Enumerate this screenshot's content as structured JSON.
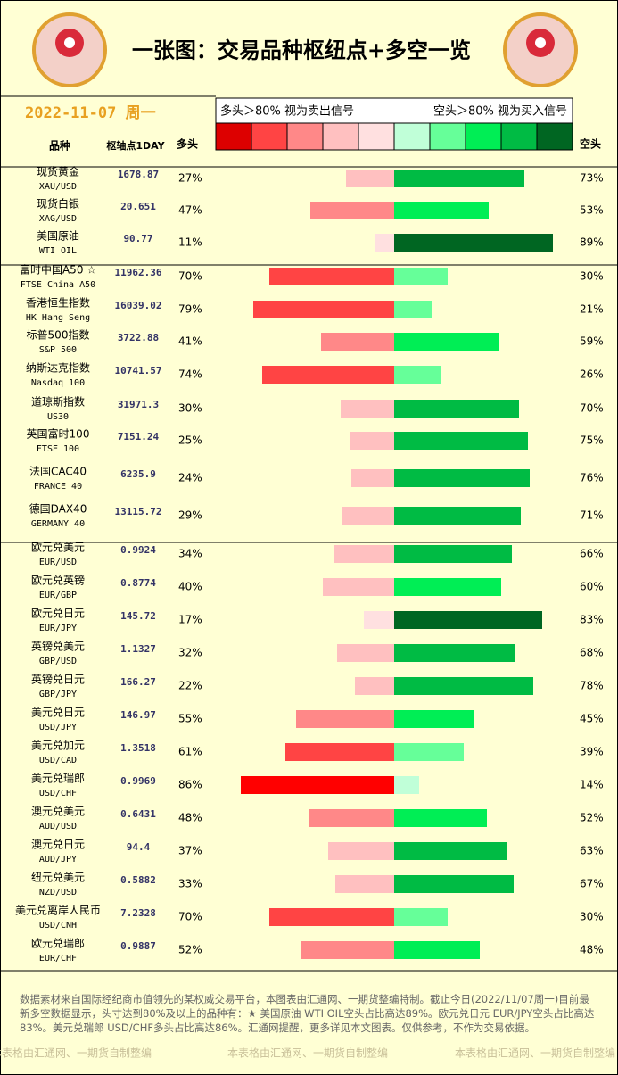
{
  "chart_data": {
    "type": "bar",
    "title": "一张图：交易品种枢纽点+多空一览",
    "date": "2022-11-07 周一",
    "legend_labels": [
      "多头＞80% 视为卖出信号",
      "空头＞80% 视为买入信号"
    ],
    "legend_colors": [
      "#dd0000",
      "#ff4444",
      "#ff8888",
      "#ffc0c0",
      "#ffe0e0",
      "#c0ffd8",
      "#66ff99",
      "#00ee55",
      "#00bb44",
      "#006622"
    ],
    "headers": {
      "name": "品种",
      "pivot": "枢轴点1DAY"
    },
    "categories": [
      "现货黄金",
      "现货白银",
      "美国原油",
      "富时中国A50 ☆",
      "香港恒生指数",
      "标普500指数",
      "纳斯达克指数",
      "道琼斯指数",
      "英国富时100",
      "法国CAC40",
      "德国DAX40",
      "欧元兑美元",
      "欧元兑英镑",
      "欧元兑日元",
      "英镑兑美元",
      "英镑兑日元",
      "美元兑日元",
      "美元兑加元",
      "美元兑瑞郎",
      "澳元兑美元",
      "澳元兑日元",
      "纽元兑美元",
      "美元兑离岸人民币",
      "欧元兑瑞郎"
    ],
    "subnames": [
      "XAU/USD",
      "XAG/USD",
      "WTI OIL",
      "FTSE China A50",
      "HK Hang Seng",
      "S&P 500",
      "Nasdaq 100",
      "US30",
      "FTSE 100",
      "FRANCE 40",
      "GERMANY 40",
      "EUR/USD",
      "EUR/GBP",
      "EUR/JPY",
      "GBP/USD",
      "GBP/JPY",
      "USD/JPY",
      "USD/CAD",
      "USD/CHF",
      "AUD/USD",
      "AUD/JPY",
      "NZD/USD",
      "USD/CNH",
      "EUR/CHF"
    ],
    "pivots": [
      1678.87,
      20.651,
      90.77,
      11962.36,
      16039.02,
      3722.88,
      10741.57,
      31971.3,
      7151.24,
      6235.9,
      13115.72,
      0.9924,
      0.8774,
      145.72,
      1.1327,
      166.27,
      146.97,
      1.3518,
      0.9969,
      0.6431,
      94.4,
      0.5882,
      7.2328,
      0.9887
    ],
    "xlim": [
      0,
      100
    ],
    "series": [
      {
        "name": "多头",
        "values": [
          27,
          47,
          11,
          70,
          79,
          41,
          74,
          30,
          25,
          24,
          29,
          34,
          40,
          17,
          32,
          22,
          55,
          61,
          86,
          48,
          37,
          33,
          70,
          52
        ],
        "value_labels": [
          "27%",
          "47%",
          "11%",
          "70%",
          "79%",
          "41%",
          "74%",
          "30%",
          "25%",
          "24%",
          "29%",
          "34%",
          "40%",
          "17%",
          "32%",
          "22%",
          "55%",
          "61%",
          "86%",
          "48%",
          "37%",
          "33%",
          "70%",
          "52%"
        ],
        "colors": [
          "#ffc0c0",
          "#ff8888",
          "#ffe0e0",
          "#ff4444",
          "#ff4444",
          "#ff8888",
          "#ff4444",
          "#ffc0c0",
          "#ffc0c0",
          "#ffc0c0",
          "#ffc0c0",
          "#ffc0c0",
          "#ffc0c0",
          "#ffe0e0",
          "#ffc0c0",
          "#ffc0c0",
          "#ff8888",
          "#ff4444",
          "#ff0000",
          "#ff8888",
          "#ffc0c0",
          "#ffc0c0",
          "#ff4444",
          "#ff8888"
        ]
      },
      {
        "name": "空头",
        "values": [
          73,
          53,
          89,
          30,
          21,
          59,
          26,
          70,
          75,
          76,
          71,
          66,
          60,
          83,
          68,
          78,
          45,
          39,
          14,
          52,
          63,
          67,
          30,
          48
        ],
        "value_labels": [
          "73%",
          "53%",
          "89%",
          "30%",
          "21%",
          "59%",
          "26%",
          "70%",
          "75%",
          "76%",
          "71%",
          "66%",
          "60%",
          "83%",
          "68%",
          "78%",
          "45%",
          "39%",
          "14%",
          "52%",
          "63%",
          "67%",
          "30%",
          "48%"
        ],
        "colors": [
          "#00bb44",
          "#00ee55",
          "#006622",
          "#66ff99",
          "#66ff99",
          "#00ee55",
          "#66ff99",
          "#00bb44",
          "#00bb44",
          "#00bb44",
          "#00bb44",
          "#00bb44",
          "#00ee55",
          "#006622",
          "#00bb44",
          "#00bb44",
          "#00ee55",
          "#66ff99",
          "#c0ffd8",
          "#00ee55",
          "#00bb44",
          "#00bb44",
          "#66ff99",
          "#00ee55"
        ]
      }
    ],
    "footer": {
      "note": "数据素材来自国际经纪商市值领先的某权威交易平台，本图表由汇通网、一期货整编特制。截止今日(2022/11/07周一)目前最新多空数据显示，头寸达到80%及以上的品种有：★ 美国原油 WTI OIL空头占比高达89%。欧元兑日元 EUR/JPY空头占比高达83%。美元兑瑞郎 USD/CHF多头占比高达86%。汇通网提醒，更多详见本文图表。仅供参考，不作为交易依据。",
      "credits": [
        "本表格由汇通网、一期货自制整编",
        "本表格由汇通网、一期货自制整编",
        "本表格由汇通网、一期货自制整编"
      ]
    }
  }
}
